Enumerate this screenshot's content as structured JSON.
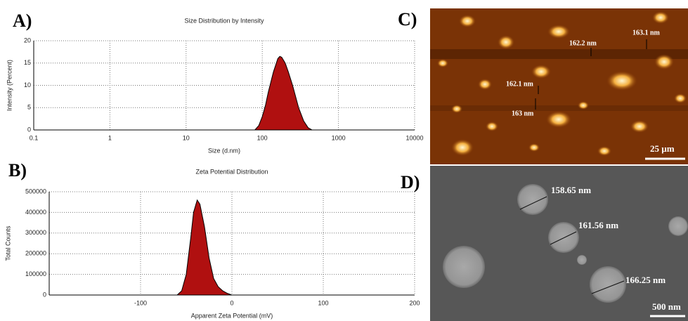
{
  "chart_data": [
    {
      "type": "area",
      "panel": "A)",
      "title": "Size Distribution by Intensity",
      "x_label": "Size (d.nm)",
      "y_label": "Intensity (Percent)",
      "x": [
        80,
        90,
        100,
        110,
        120,
        140,
        160,
        170,
        180,
        200,
        220,
        250,
        300,
        350,
        400,
        450
      ],
      "values": [
        0,
        1,
        3,
        5.5,
        8.5,
        13,
        16,
        16.5,
        16.3,
        15,
        13,
        10,
        5,
        2,
        0.5,
        0
      ],
      "color": "#b01010",
      "xscale": "log",
      "xlim": [
        0.1,
        10000
      ],
      "xticks": [
        0.1,
        1,
        10,
        100,
        1000,
        10000
      ],
      "ylim": [
        0,
        20
      ],
      "yticks": [
        0,
        5,
        10,
        15,
        20
      ],
      "grid": true
    },
    {
      "type": "area",
      "panel": "B)",
      "title": "Zeta Potential Distribution",
      "x_label": "Apparent Zeta Potential (mV)",
      "y_label": "Total Counts",
      "x": [
        -60,
        -55,
        -50,
        -45,
        -42,
        -38,
        -35,
        -30,
        -25,
        -20,
        -15,
        -10,
        -5,
        0
      ],
      "values": [
        0,
        20000,
        100000,
        280000,
        400000,
        460000,
        440000,
        330000,
        180000,
        80000,
        40000,
        20000,
        8000,
        0
      ],
      "color": "#b01010",
      "xlim": [
        -200,
        200
      ],
      "xticks": [
        -100,
        0,
        100,
        200
      ],
      "ylim": [
        0,
        500000
      ],
      "yticks": [
        0,
        100000,
        200000,
        300000,
        400000,
        500000
      ],
      "grid": true
    }
  ],
  "afm_image": {
    "panel": "C)",
    "annotations": [
      "162.2 nm",
      "163.1 nm",
      "162.1 nm",
      "163 nm"
    ],
    "scale_bar": "25 µm"
  },
  "sem_image": {
    "panel": "D)",
    "annotations": [
      "158.65 nm",
      "161.56 nm",
      "166.25 nm"
    ],
    "scale_bar": "500 nm"
  }
}
